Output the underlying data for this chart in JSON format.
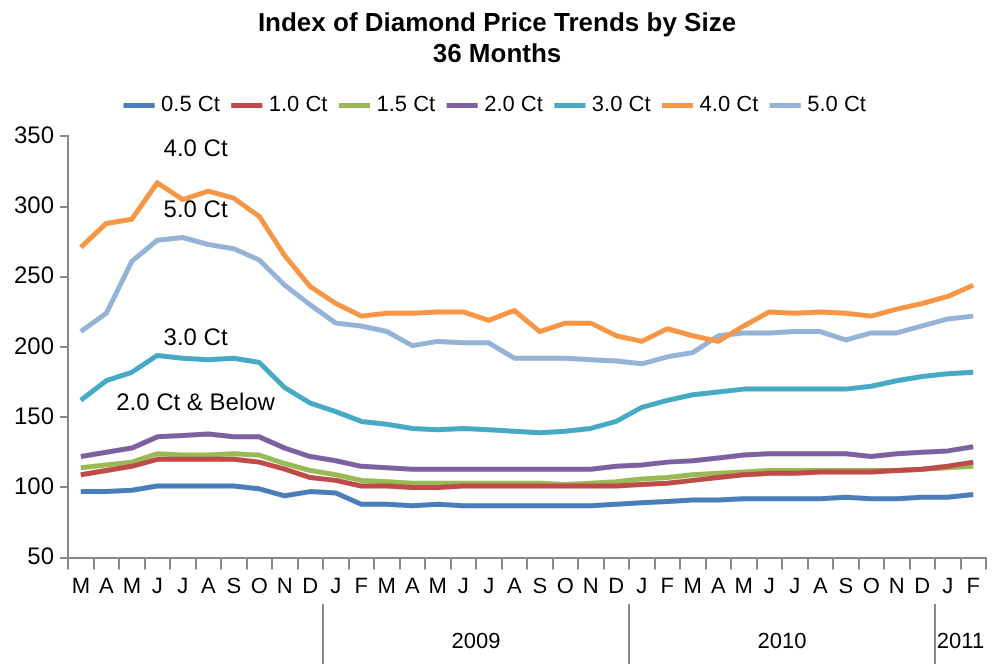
{
  "chart_data": {
    "type": "line",
    "title": "Index of Diamond Price Trends by Size",
    "subtitle": "36 Months",
    "categories": [
      "M",
      "A",
      "M",
      "J",
      "J",
      "A",
      "S",
      "O",
      "N",
      "D",
      "J",
      "F",
      "M",
      "A",
      "M",
      "J",
      "J",
      "A",
      "S",
      "O",
      "N",
      "D",
      "J",
      "F",
      "M",
      "A",
      "M",
      "J",
      "J",
      "A",
      "S",
      "O",
      "N",
      "D",
      "J",
      "F"
    ],
    "ylim": [
      50,
      350
    ],
    "yticks": [
      50,
      100,
      150,
      200,
      250,
      300,
      350
    ],
    "grid": false,
    "legend": "top",
    "marker": "none",
    "line_style": "solid",
    "series": [
      {
        "name": "0.5 Ct",
        "color": "#4a7ebb",
        "values": [
          97,
          97,
          98,
          101,
          101,
          101,
          101,
          99,
          94,
          97,
          96,
          88,
          88,
          87,
          88,
          87,
          87,
          87,
          87,
          87,
          87,
          88,
          89,
          90,
          91,
          91,
          92,
          92,
          92,
          92,
          93,
          92,
          92,
          93,
          93,
          95
        ]
      },
      {
        "name": "1.0 Ct",
        "color": "#be4b48",
        "values": [
          109,
          112,
          115,
          120,
          120,
          120,
          120,
          118,
          113,
          107,
          105,
          101,
          101,
          100,
          100,
          101,
          101,
          101,
          101,
          101,
          101,
          101,
          102,
          103,
          105,
          107,
          109,
          110,
          110,
          111,
          111,
          111,
          112,
          113,
          115,
          118
        ]
      },
      {
        "name": "1.5 Ct",
        "color": "#98b954",
        "values": [
          114,
          116,
          118,
          124,
          123,
          123,
          124,
          123,
          117,
          112,
          109,
          105,
          104,
          103,
          103,
          103,
          103,
          103,
          103,
          102,
          103,
          104,
          106,
          107,
          109,
          110,
          111,
          112,
          112,
          112,
          112,
          112,
          112,
          113,
          114,
          115
        ]
      },
      {
        "name": "2.0 Ct",
        "color": "#7d60a0",
        "values": [
          122,
          125,
          128,
          136,
          137,
          138,
          136,
          136,
          128,
          122,
          119,
          115,
          114,
          113,
          113,
          113,
          113,
          113,
          113,
          113,
          113,
          115,
          116,
          118,
          119,
          121,
          123,
          124,
          124,
          124,
          124,
          122,
          124,
          125,
          126,
          129
        ]
      },
      {
        "name": "3.0 Ct",
        "color": "#46aac5",
        "values": [
          162,
          176,
          182,
          194,
          192,
          191,
          192,
          189,
          171,
          160,
          154,
          147,
          145,
          142,
          141,
          142,
          141,
          140,
          139,
          140,
          142,
          147,
          157,
          162,
          166,
          168,
          170,
          170,
          170,
          170,
          170,
          172,
          176,
          179,
          181,
          182
        ]
      },
      {
        "name": "4.0 Ct",
        "color": "#f79646",
        "values": [
          271,
          288,
          291,
          317,
          305,
          311,
          306,
          293,
          265,
          243,
          231,
          222,
          224,
          224,
          225,
          225,
          219,
          226,
          211,
          217,
          217,
          208,
          204,
          213,
          208,
          204,
          215,
          225,
          224,
          225,
          224,
          222,
          227,
          231,
          236,
          244
        ]
      },
      {
        "name": "5.0 Ct",
        "color": "#95b3d7",
        "values": [
          211,
          224,
          261,
          276,
          278,
          273,
          270,
          262,
          244,
          230,
          217,
          215,
          211,
          201,
          204,
          203,
          203,
          192,
          192,
          192,
          191,
          190,
          188,
          193,
          196,
          208,
          210,
          210,
          211,
          211,
          205,
          210,
          210,
          215,
          220,
          222
        ]
      }
    ],
    "annotations": [
      "4.0 Ct",
      "5.0 Ct",
      "3.0 Ct",
      "2.0 Ct & Below",
      "2009",
      "2010",
      "2011"
    ]
  }
}
